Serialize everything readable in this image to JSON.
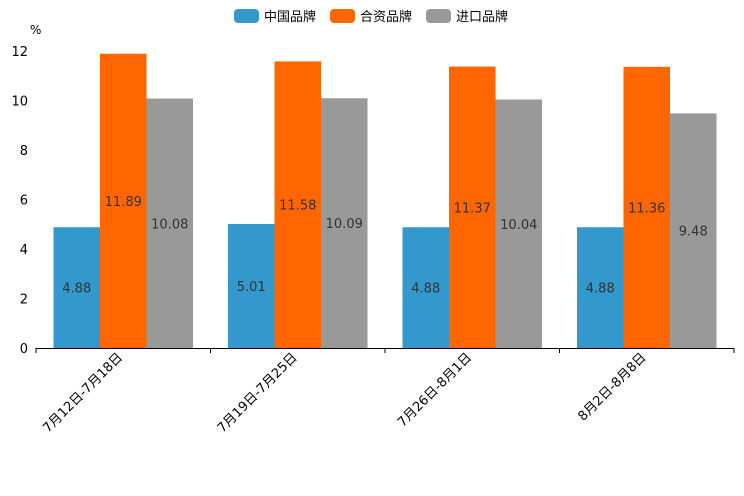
{
  "chart_data": {
    "type": "bar",
    "title": "",
    "xlabel": "",
    "ylabel": "",
    "unit": "%",
    "ylim": [
      0,
      12
    ],
    "yticks": [
      "0",
      "2",
      "4",
      "6",
      "8",
      "10",
      "12"
    ],
    "grid": false,
    "legend_position": "top-center",
    "categories": [
      "7月12日-7月18日",
      "7月19日-7月25日",
      "7月26日-8月1日",
      "8月2日-8月8日"
    ],
    "series": [
      {
        "name": "中国品牌",
        "color": "#3399cc",
        "values": [
          4.88,
          5.01,
          4.88,
          4.88
        ],
        "labels": [
          "4.88",
          "5.01",
          "4.88",
          "4.88"
        ]
      },
      {
        "name": "合资品牌",
        "color": "#ff6600",
        "values": [
          11.89,
          11.58,
          11.37,
          11.36
        ],
        "labels": [
          "11.89",
          "11.58",
          "11.37",
          "11.36"
        ]
      },
      {
        "name": "进口品牌",
        "color": "#999999",
        "values": [
          10.08,
          10.09,
          10.04,
          9.48
        ],
        "labels": [
          "10.08",
          "10.09",
          "10.04",
          "9.48"
        ]
      }
    ]
  }
}
